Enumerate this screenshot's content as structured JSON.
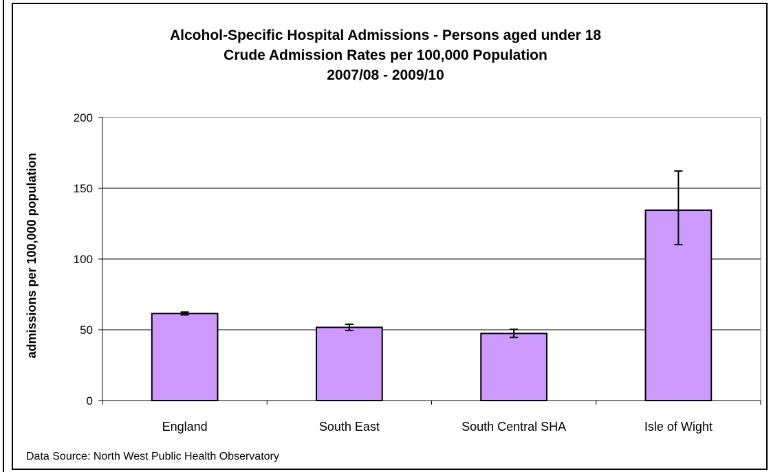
{
  "chart_data": {
    "type": "bar",
    "title_lines": [
      "Alcohol-Specific Hospital Admissions - Persons aged under 18",
      "Crude Admission Rates per 100,000 Population",
      "2007/08 - 2009/10"
    ],
    "xlabel": "",
    "ylabel": "admissions per 100,000 population",
    "categories": [
      "England",
      "South East",
      "South Central SHA",
      "Isle of Wight"
    ],
    "values": [
      61.5,
      51.7,
      47.4,
      134.5
    ],
    "error_low": [
      60.5,
      49.5,
      44.6,
      110.2
    ],
    "error_high": [
      62.5,
      53.9,
      50.3,
      162.2
    ],
    "ylim": [
      0,
      200
    ],
    "yticks": [
      "0",
      "50",
      "100",
      "150",
      "200"
    ],
    "bar_color": "#cc99ff",
    "grid": true
  },
  "footer": {
    "source": "Data Source: North West Public Health Observatory"
  }
}
